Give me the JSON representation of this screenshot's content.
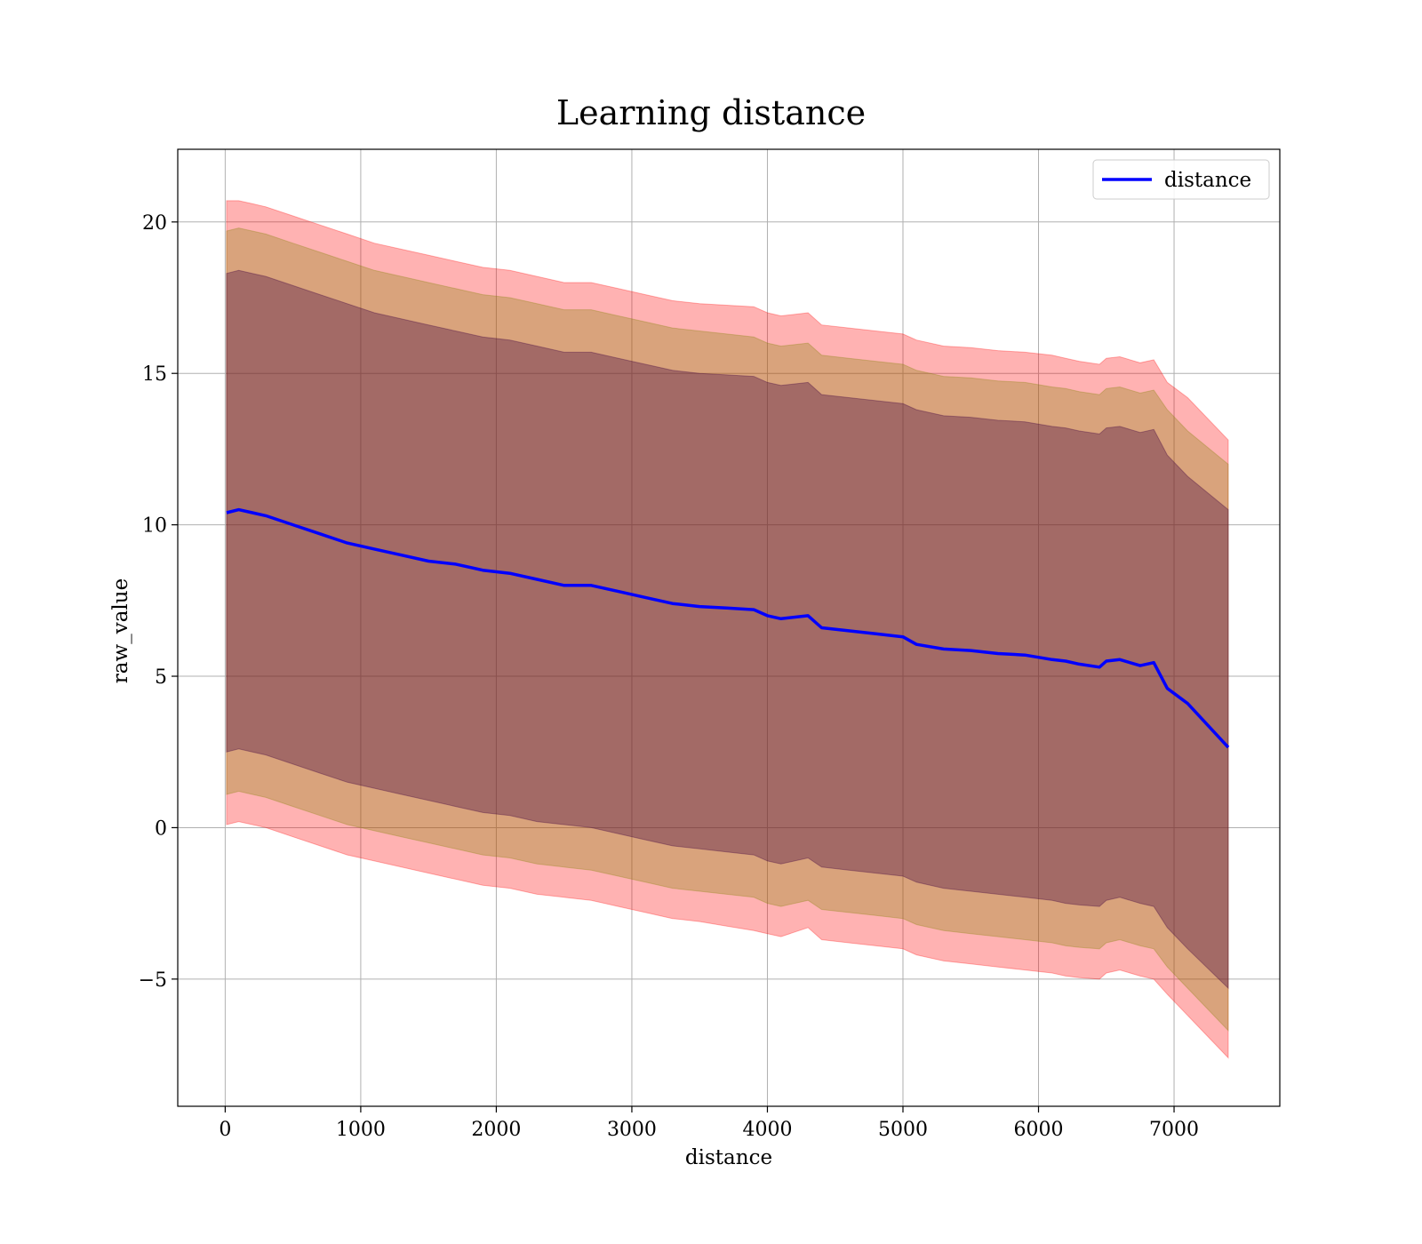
{
  "chart_data": {
    "type": "area",
    "title": "Learning distance",
    "xlabel": "distance",
    "ylabel": "raw_value",
    "xlim": [
      -350,
      7780
    ],
    "ylim": [
      -9.2,
      22.4
    ],
    "xticks": [
      0,
      1000,
      2000,
      3000,
      4000,
      5000,
      6000,
      7000
    ],
    "xtick_labels": [
      "0",
      "1000",
      "2000",
      "3000",
      "4000",
      "5000",
      "6000",
      "7000"
    ],
    "yticks": [
      -5,
      0,
      5,
      10,
      15,
      20
    ],
    "ytick_labels": [
      "−5",
      "0",
      "5",
      "10",
      "15",
      "20"
    ],
    "grid": true,
    "legend_position": "top-right",
    "series": [
      {
        "name": "distance",
        "color": "#0000ff",
        "x": [
          10,
          100,
          200,
          300,
          500,
          700,
          900,
          1100,
          1300,
          1500,
          1700,
          1900,
          2100,
          2300,
          2500,
          2700,
          2900,
          3100,
          3300,
          3500,
          3700,
          3900,
          4000,
          4100,
          4300,
          4400,
          4600,
          4800,
          5000,
          5100,
          5300,
          5500,
          5700,
          5900,
          6100,
          6200,
          6300,
          6450,
          6500,
          6600,
          6750,
          6850,
          6950,
          7100,
          7400
        ],
        "y": [
          10.4,
          10.5,
          10.4,
          10.3,
          10.0,
          9.7,
          9.4,
          9.2,
          9.0,
          8.8,
          8.7,
          8.5,
          8.4,
          8.2,
          8.0,
          8.0,
          7.8,
          7.6,
          7.4,
          7.3,
          7.25,
          7.2,
          7.0,
          6.9,
          7.0,
          6.6,
          6.5,
          6.4,
          6.3,
          6.05,
          5.9,
          5.85,
          5.75,
          5.7,
          5.55,
          5.5,
          5.4,
          5.3,
          5.5,
          5.55,
          5.35,
          5.45,
          4.6,
          4.1,
          2.65
        ]
      }
    ],
    "bands": [
      {
        "color": "#ff0000",
        "opacity": 0.3,
        "upper": [
          20.7,
          20.7,
          20.6,
          20.5,
          20.2,
          19.9,
          19.6,
          19.3,
          19.1,
          18.9,
          18.7,
          18.5,
          18.4,
          18.2,
          18.0,
          18.0,
          17.8,
          17.6,
          17.4,
          17.3,
          17.25,
          17.2,
          17.0,
          16.9,
          17.0,
          16.6,
          16.5,
          16.4,
          16.3,
          16.1,
          15.9,
          15.85,
          15.75,
          15.7,
          15.6,
          15.5,
          15.4,
          15.3,
          15.5,
          15.55,
          15.35,
          15.45,
          14.7,
          14.2,
          12.8
        ],
        "lower": [
          0.1,
          0.2,
          0.1,
          0.0,
          -0.3,
          -0.6,
          -0.9,
          -1.1,
          -1.3,
          -1.5,
          -1.7,
          -1.9,
          -2.0,
          -2.2,
          -2.3,
          -2.4,
          -2.6,
          -2.8,
          -3.0,
          -3.1,
          -3.25,
          -3.4,
          -3.5,
          -3.6,
          -3.3,
          -3.7,
          -3.8,
          -3.9,
          -4.0,
          -4.2,
          -4.4,
          -4.5,
          -4.6,
          -4.7,
          -4.8,
          -4.9,
          -4.95,
          -5.0,
          -4.8,
          -4.7,
          -4.9,
          -5.0,
          -5.5,
          -6.2,
          -7.6
        ]
      },
      {
        "color": "#808000",
        "opacity": 0.3,
        "upper": [
          19.7,
          19.8,
          19.7,
          19.6,
          19.3,
          19.0,
          18.7,
          18.4,
          18.2,
          18.0,
          17.8,
          17.6,
          17.5,
          17.3,
          17.1,
          17.1,
          16.9,
          16.7,
          16.5,
          16.4,
          16.3,
          16.2,
          16.0,
          15.9,
          16.0,
          15.6,
          15.5,
          15.4,
          15.3,
          15.1,
          14.9,
          14.85,
          14.75,
          14.7,
          14.55,
          14.5,
          14.4,
          14.3,
          14.5,
          14.55,
          14.35,
          14.45,
          13.8,
          13.1,
          12.0
        ],
        "lower": [
          1.1,
          1.2,
          1.1,
          1.0,
          0.7,
          0.4,
          0.1,
          -0.1,
          -0.3,
          -0.5,
          -0.7,
          -0.9,
          -1.0,
          -1.2,
          -1.3,
          -1.4,
          -1.6,
          -1.8,
          -2.0,
          -2.1,
          -2.2,
          -2.3,
          -2.5,
          -2.6,
          -2.4,
          -2.7,
          -2.8,
          -2.9,
          -3.0,
          -3.2,
          -3.4,
          -3.5,
          -3.6,
          -3.7,
          -3.8,
          -3.9,
          -3.95,
          -4.0,
          -3.8,
          -3.7,
          -3.9,
          -4.0,
          -4.6,
          -5.3,
          -6.7
        ]
      },
      {
        "color": "#400040",
        "opacity": 0.35,
        "upper": [
          18.3,
          18.4,
          18.3,
          18.2,
          17.9,
          17.6,
          17.3,
          17.0,
          16.8,
          16.6,
          16.4,
          16.2,
          16.1,
          15.9,
          15.7,
          15.7,
          15.5,
          15.3,
          15.1,
          15.0,
          14.95,
          14.9,
          14.7,
          14.6,
          14.7,
          14.3,
          14.2,
          14.1,
          14.0,
          13.8,
          13.6,
          13.55,
          13.45,
          13.4,
          13.25,
          13.2,
          13.1,
          13.0,
          13.2,
          13.25,
          13.05,
          13.15,
          12.3,
          11.6,
          10.5
        ],
        "lower": [
          2.5,
          2.6,
          2.5,
          2.4,
          2.1,
          1.8,
          1.5,
          1.3,
          1.1,
          0.9,
          0.7,
          0.5,
          0.4,
          0.2,
          0.1,
          0.0,
          -0.2,
          -0.4,
          -0.6,
          -0.7,
          -0.8,
          -0.9,
          -1.1,
          -1.2,
          -1.0,
          -1.3,
          -1.4,
          -1.5,
          -1.6,
          -1.8,
          -2.0,
          -2.1,
          -2.2,
          -2.3,
          -2.4,
          -2.5,
          -2.55,
          -2.6,
          -2.4,
          -2.3,
          -2.5,
          -2.6,
          -3.3,
          -4.0,
          -5.3
        ]
      }
    ]
  }
}
